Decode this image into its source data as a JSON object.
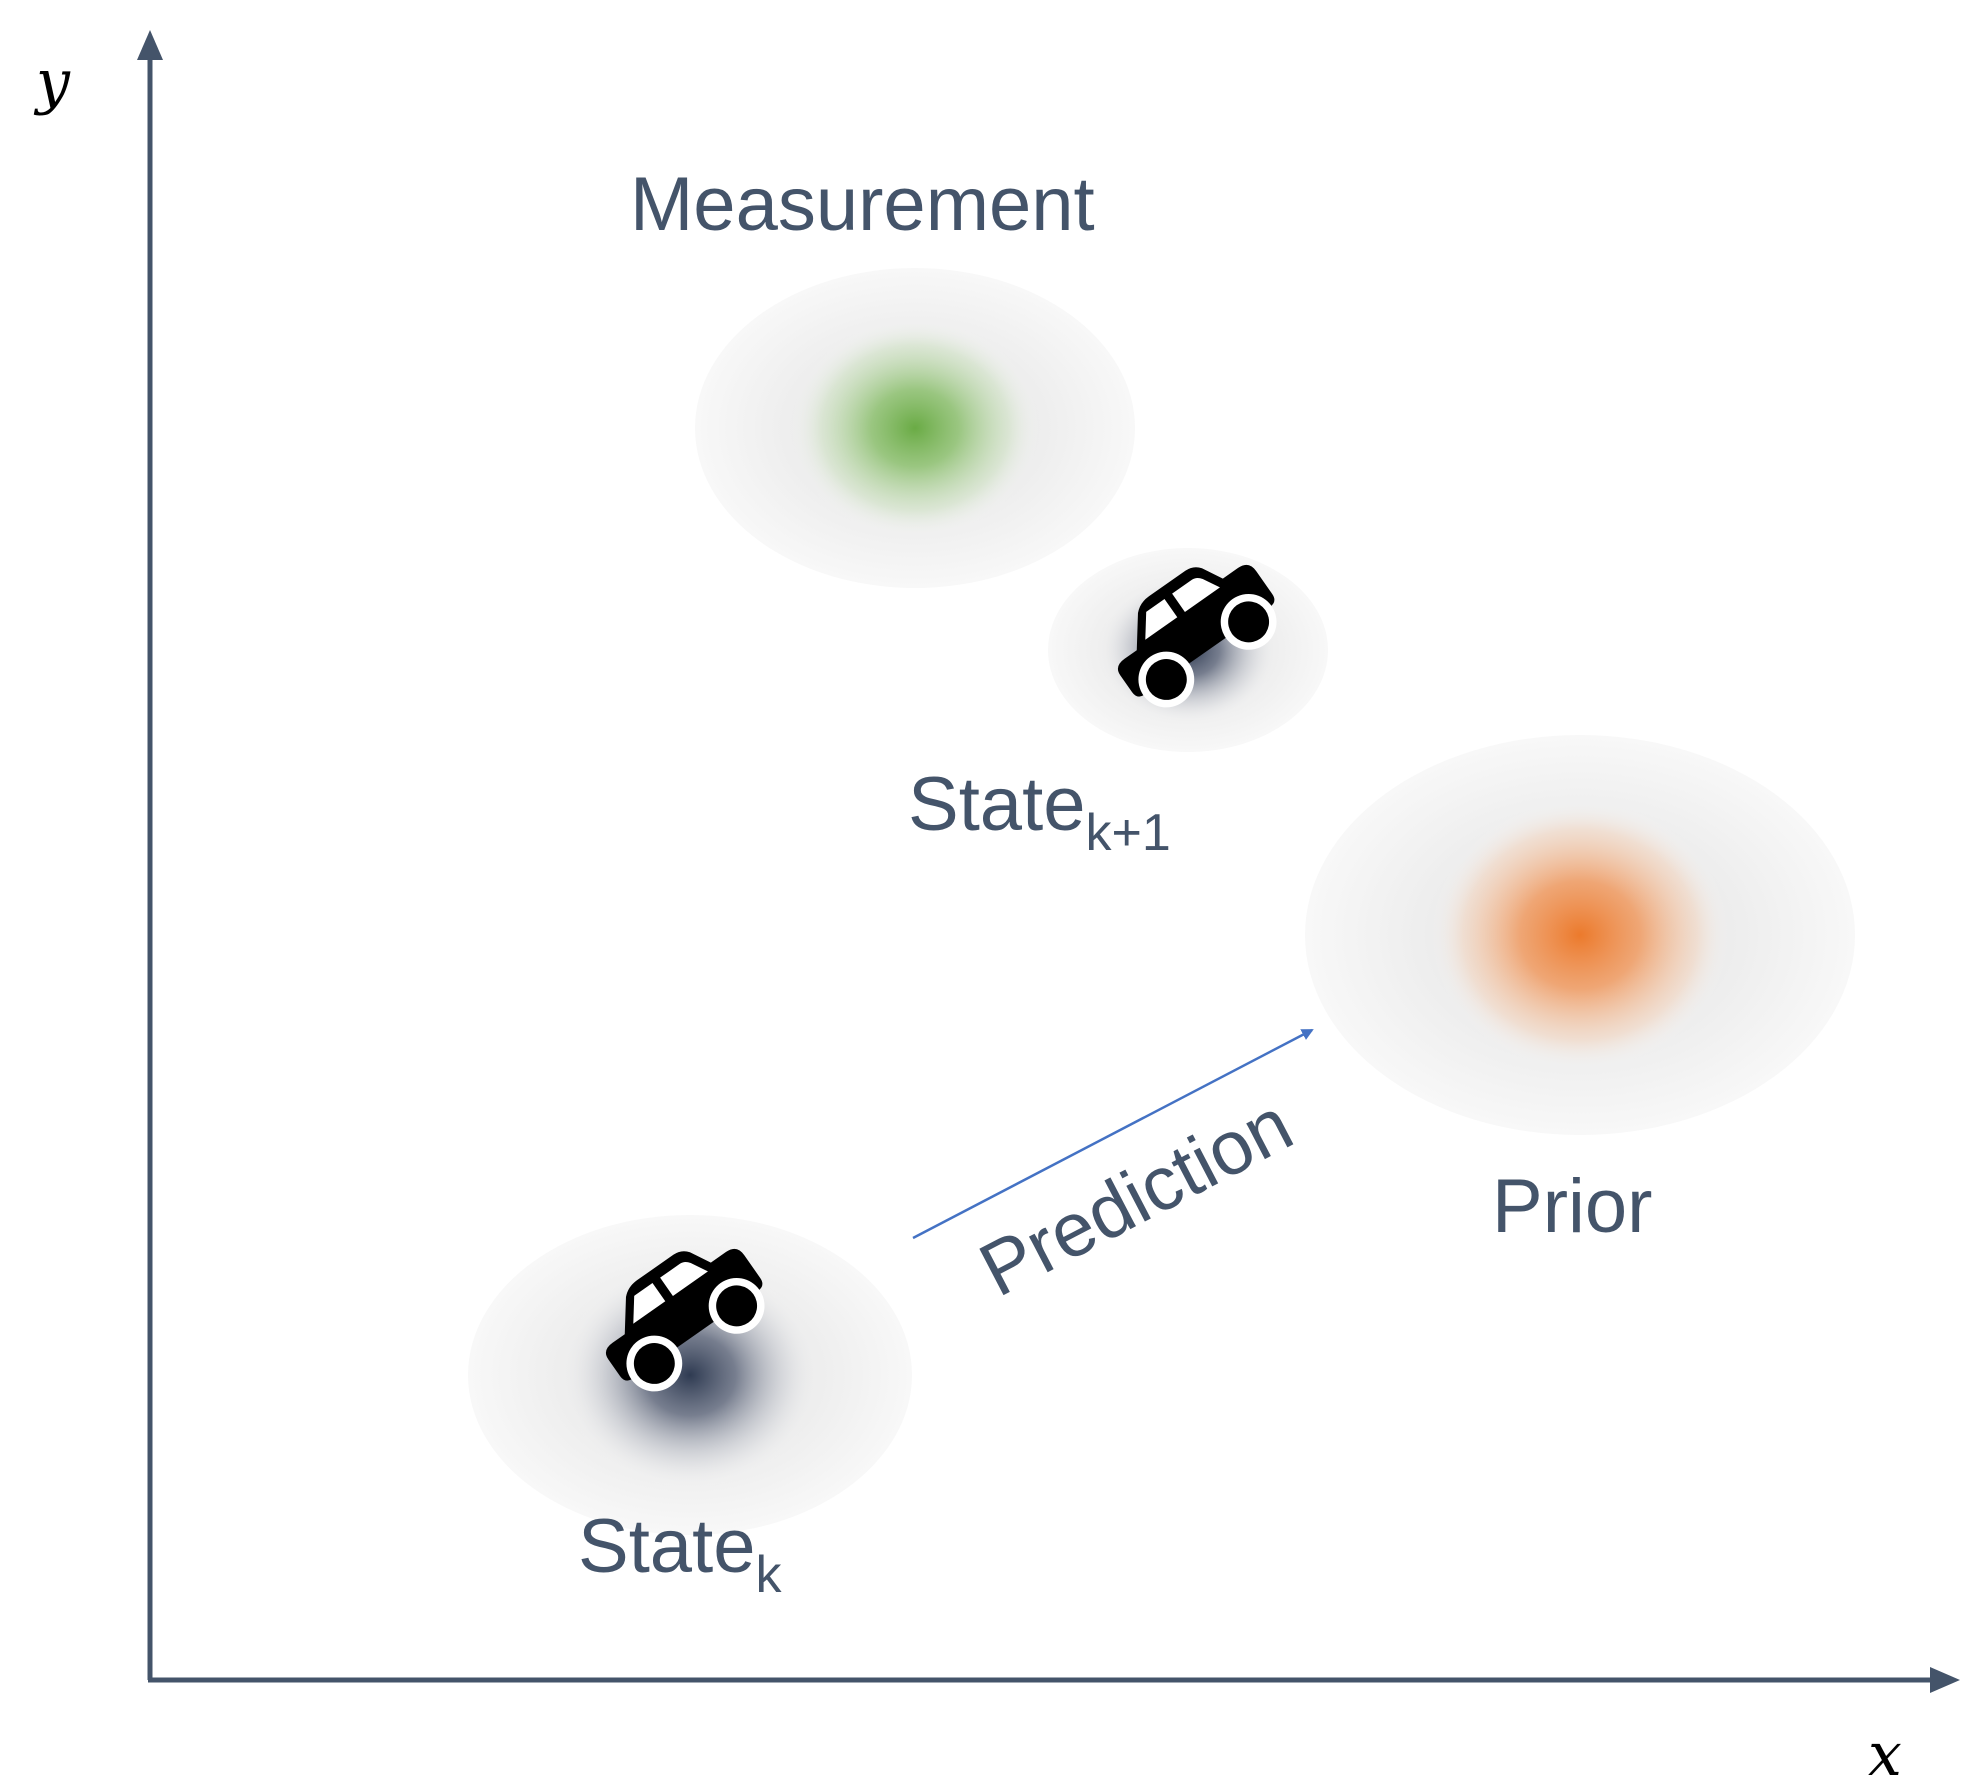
{
  "axes": {
    "x_label": "x",
    "y_label": "y"
  },
  "labels": {
    "measurement": "Measurement",
    "state_next": {
      "main": "State",
      "sub": "k+1"
    },
    "state_current": {
      "main": "State",
      "sub": "k"
    },
    "prior": "Prior",
    "prediction": "Prediction"
  },
  "colors": {
    "text": "#44546a",
    "axis": "#44546a",
    "measurement": "#70ad47",
    "prior": "#ed7d31",
    "state": "#2f3b52",
    "arrow": "#4472c4",
    "car": "#000000"
  },
  "icons": {
    "car": "car-icon"
  }
}
